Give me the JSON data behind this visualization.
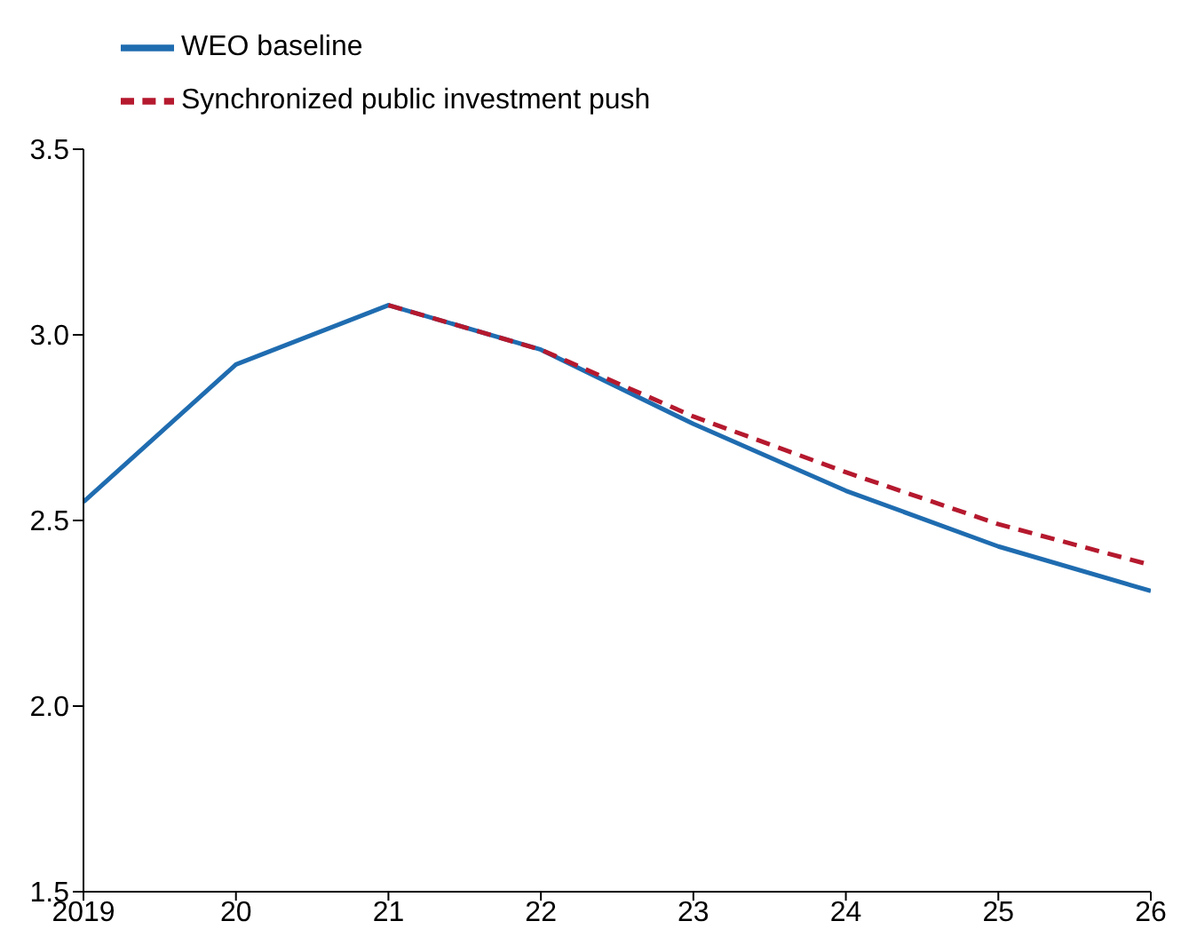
{
  "chart_data": {
    "type": "line",
    "x": [
      2019,
      2020,
      2021,
      2022,
      2023,
      2024,
      2025,
      2026
    ],
    "series": [
      {
        "name": "WEO baseline",
        "color": "#1f6cb0",
        "values": [
          2.55,
          2.92,
          3.08,
          2.96,
          2.76,
          2.58,
          2.43,
          2.31
        ],
        "line_style": "solid"
      },
      {
        "name": "Synchronized public investment push",
        "color": "#b5192e",
        "values": [
          null,
          null,
          3.08,
          2.96,
          2.78,
          2.63,
          2.49,
          2.38
        ],
        "line_style": "dashed"
      }
    ],
    "xlim": [
      2019,
      2026
    ],
    "xticks": [
      {
        "value": 2019,
        "label": "2019"
      },
      {
        "value": 2020,
        "label": "20"
      },
      {
        "value": 2021,
        "label": "21"
      },
      {
        "value": 2022,
        "label": "22"
      },
      {
        "value": 2023,
        "label": "23"
      },
      {
        "value": 2024,
        "label": "24"
      },
      {
        "value": 2025,
        "label": "25"
      },
      {
        "value": 2026,
        "label": "26"
      }
    ],
    "ylim": [
      1.5,
      3.5
    ],
    "yticks": [
      {
        "value": 1.5,
        "label": "1.5"
      },
      {
        "value": 2,
        "label": "2.0"
      },
      {
        "value": 2.5,
        "label": "2.5"
      },
      {
        "value": 3,
        "label": "3.0"
      },
      {
        "value": 3.5,
        "label": "3.5"
      }
    ],
    "grid": false,
    "legend": "top left",
    "marker": "none"
  }
}
